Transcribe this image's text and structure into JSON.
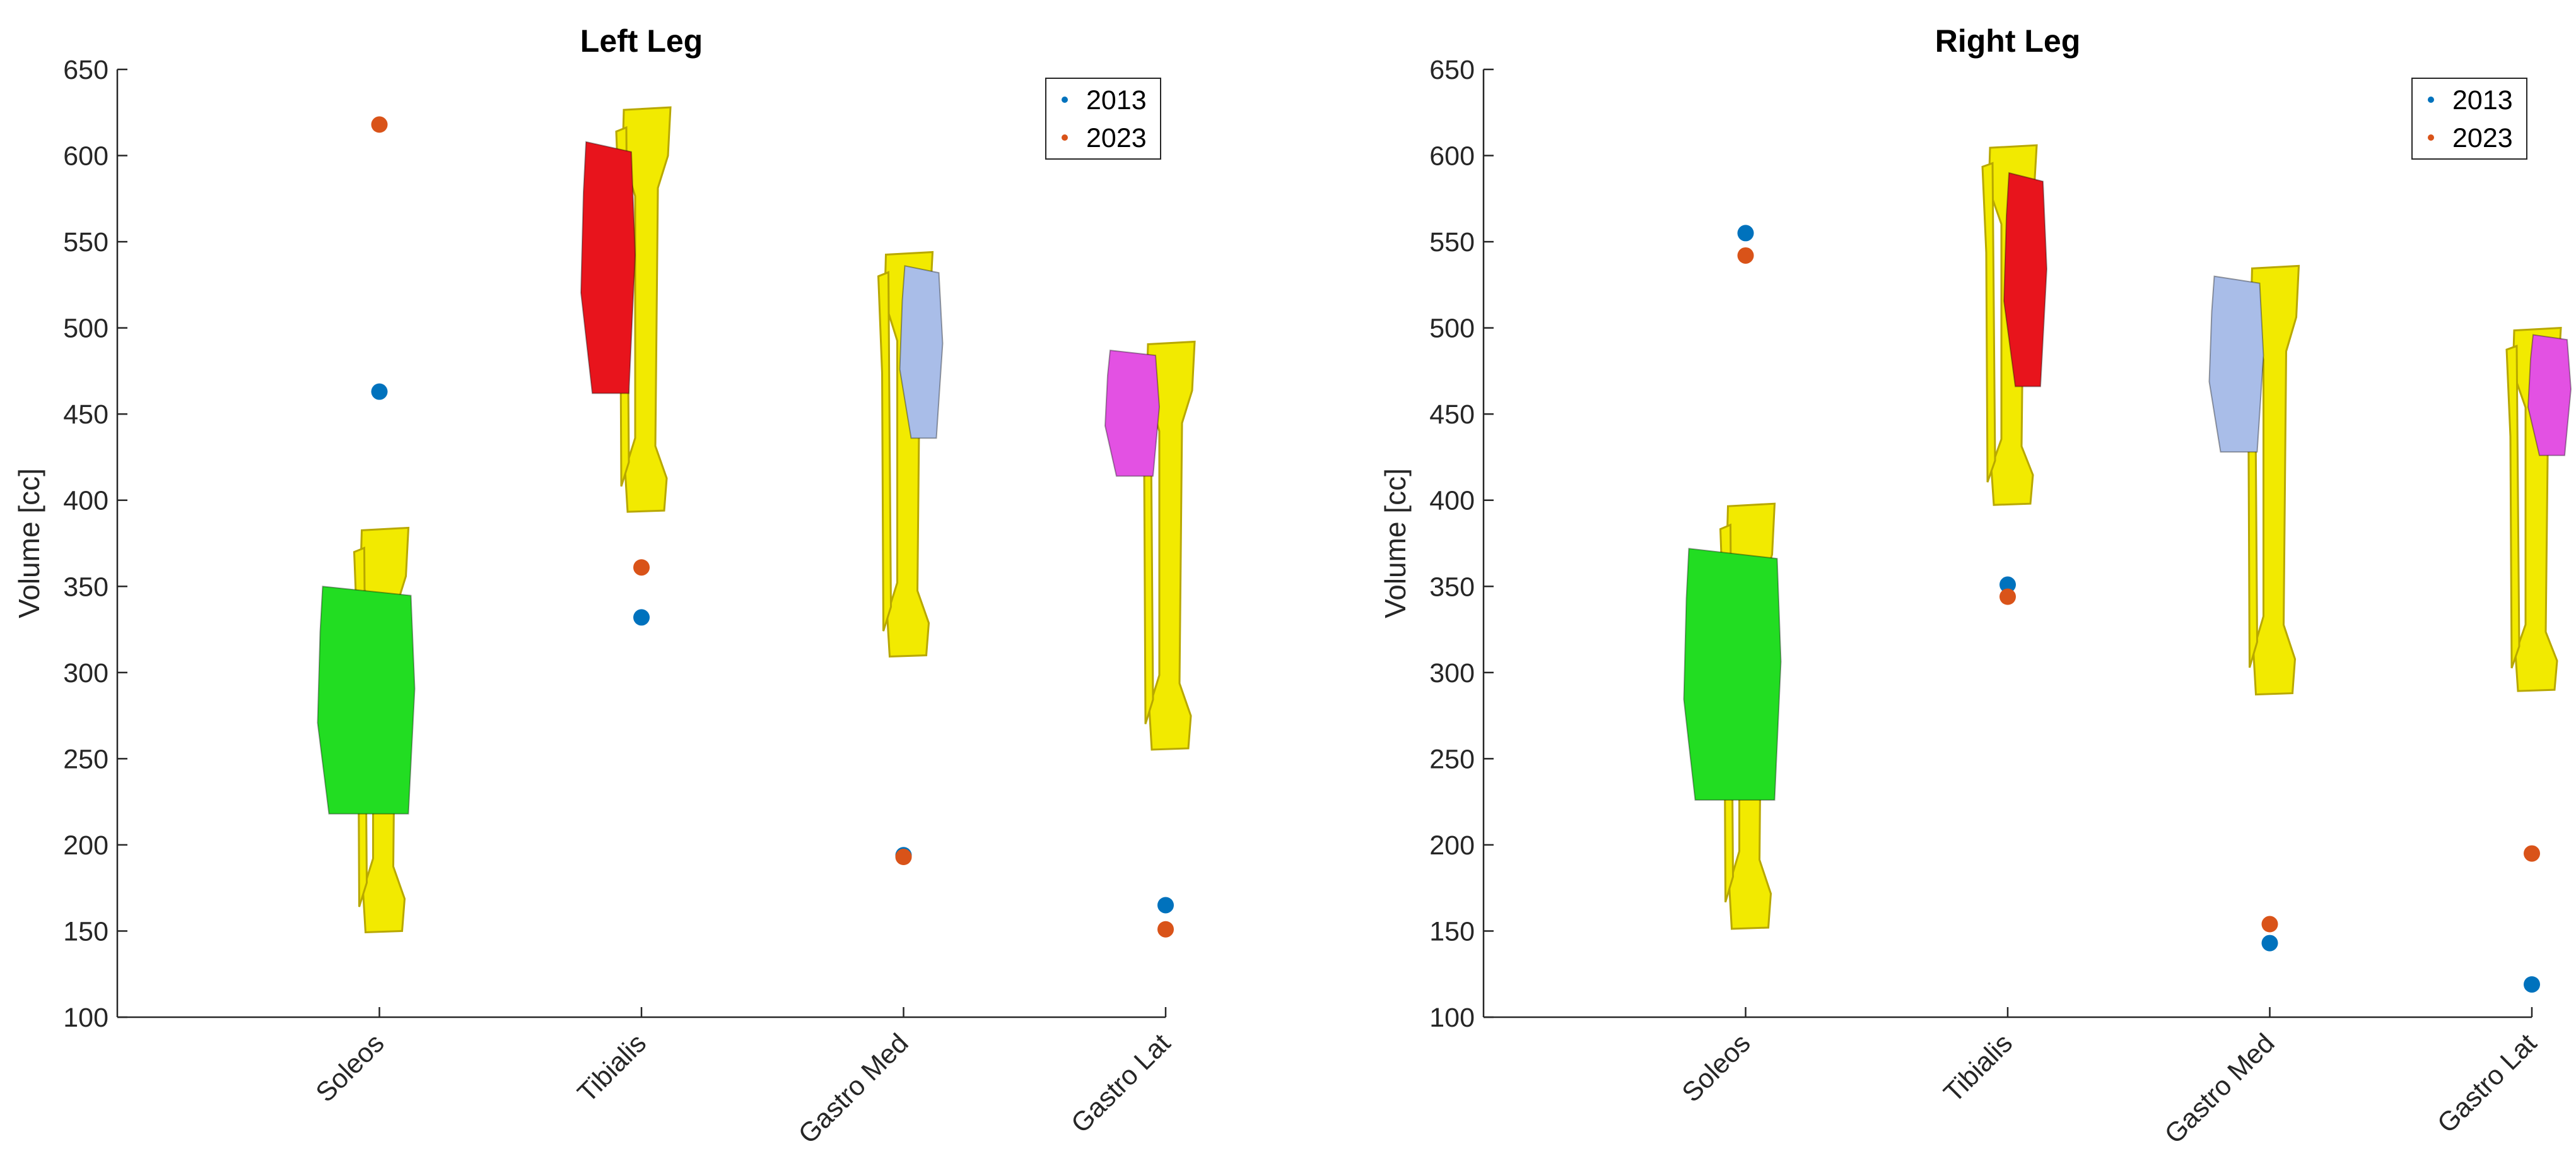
{
  "chart_data": [
    {
      "type": "scatter",
      "title": "Left Leg",
      "ylabel": "Volume [cc]",
      "xlabel": "",
      "ylim": [
        100,
        650
      ],
      "yticks": [
        100,
        150,
        200,
        250,
        300,
        350,
        400,
        450,
        500,
        550,
        600,
        650
      ],
      "categories": [
        "Soleos",
        "Tibialis",
        "Gastro Med",
        "Gastro Lat"
      ],
      "xlim": [
        0,
        4
      ],
      "grid": false,
      "legend_position": "top-right",
      "series": [
        {
          "name": "2013",
          "color": "#0072BD",
          "values": [
            463,
            332,
            194,
            165
          ]
        },
        {
          "name": "2023",
          "color": "#D95319",
          "values": [
            618,
            361,
            193,
            151
          ]
        }
      ],
      "bone_models": [
        {
          "category": "Soleos",
          "muscle_color": "#22DD22",
          "icon": "tibia-fibula-soleus-model",
          "y_top": 384,
          "y_bottom": 150,
          "muscle_top": 350,
          "muscle_bottom": 218,
          "muscle_side": "front"
        },
        {
          "category": "Tibialis",
          "muscle_color": "#E8141C",
          "icon": "tibia-fibula-tibialis-model",
          "y_top": 628,
          "y_bottom": 394,
          "muscle_top": 608,
          "muscle_bottom": 462,
          "muscle_side": "left"
        },
        {
          "category": "Gastro Med",
          "muscle_color": "#A9BDE8",
          "icon": "tibia-fibula-gastro-med-model",
          "y_top": 544,
          "y_bottom": 310,
          "muscle_top": 536,
          "muscle_bottom": 436,
          "muscle_side": "right"
        },
        {
          "category": "Gastro Lat",
          "muscle_color": "#E351E3",
          "icon": "tibia-fibula-gastro-lat-model",
          "y_top": 492,
          "y_bottom": 256,
          "muscle_top": 487,
          "muscle_bottom": 414,
          "muscle_side": "left"
        }
      ]
    },
    {
      "type": "scatter",
      "title": "Right Leg",
      "ylabel": "Volume [cc]",
      "xlabel": "",
      "ylim": [
        100,
        650
      ],
      "yticks": [
        100,
        150,
        200,
        250,
        300,
        350,
        400,
        450,
        500,
        550,
        600,
        650
      ],
      "categories": [
        "Soleos",
        "Tibialis",
        "Gastro Med",
        "Gastro Lat"
      ],
      "xlim": [
        0,
        4
      ],
      "grid": false,
      "legend_position": "top-right",
      "series": [
        {
          "name": "2013",
          "color": "#0072BD",
          "values": [
            555,
            351,
            143,
            119
          ]
        },
        {
          "name": "2023",
          "color": "#D95319",
          "values": [
            542,
            344,
            154,
            195
          ]
        }
      ],
      "bone_models": [
        {
          "category": "Soleos",
          "muscle_color": "#22DD22",
          "icon": "tibia-fibula-soleus-model",
          "y_top": 398,
          "y_bottom": 152,
          "muscle_top": 372,
          "muscle_bottom": 226,
          "muscle_side": "front"
        },
        {
          "category": "Tibialis",
          "muscle_color": "#E8141C",
          "icon": "tibia-fibula-tibialis-model",
          "y_top": 606,
          "y_bottom": 398,
          "muscle_top": 590,
          "muscle_bottom": 466,
          "muscle_side": "right"
        },
        {
          "category": "Gastro Med",
          "muscle_color": "#A9BDE8",
          "icon": "tibia-fibula-gastro-med-model",
          "y_top": 536,
          "y_bottom": 288,
          "muscle_top": 530,
          "muscle_bottom": 428,
          "muscle_side": "left"
        },
        {
          "category": "Gastro Lat",
          "muscle_color": "#E351E3",
          "icon": "tibia-fibula-gastro-lat-model",
          "y_top": 500,
          "y_bottom": 290,
          "muscle_top": 496,
          "muscle_bottom": 426,
          "muscle_side": "right"
        }
      ]
    }
  ],
  "colors": {
    "bone": "#F2EA00",
    "bone_shade": "#B8A800",
    "axis": "#262626",
    "text": "#262626"
  }
}
